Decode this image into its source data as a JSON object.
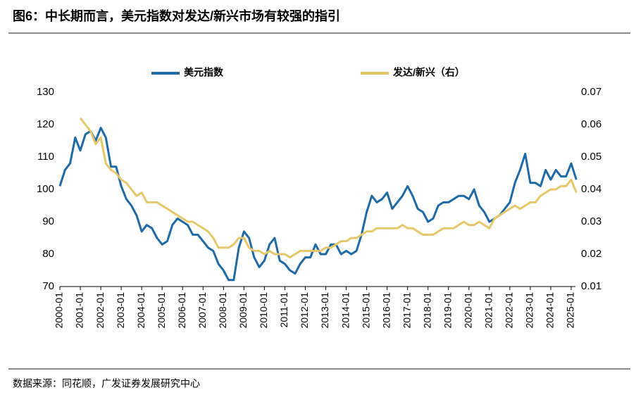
{
  "chart_data": {
    "type": "line",
    "title": "图6：中长期而言，美元指数对发达/新兴市场有较强的指引",
    "source": "数据来源：同花顺，广发证券发展研究中心",
    "x": [
      "2000-01",
      "2000-04",
      "2000-07",
      "2000-10",
      "2001-01",
      "2001-04",
      "2001-07",
      "2001-10",
      "2002-01",
      "2002-04",
      "2002-07",
      "2002-10",
      "2003-01",
      "2003-04",
      "2003-07",
      "2003-10",
      "2004-01",
      "2004-04",
      "2004-07",
      "2004-10",
      "2005-01",
      "2005-04",
      "2005-07",
      "2005-10",
      "2006-01",
      "2006-04",
      "2006-07",
      "2006-10",
      "2007-01",
      "2007-04",
      "2007-07",
      "2007-10",
      "2008-01",
      "2008-04",
      "2008-07",
      "2008-10",
      "2009-01",
      "2009-04",
      "2009-07",
      "2009-10",
      "2010-01",
      "2010-04",
      "2010-07",
      "2010-10",
      "2011-01",
      "2011-04",
      "2011-07",
      "2011-10",
      "2012-01",
      "2012-04",
      "2012-07",
      "2012-10",
      "2013-01",
      "2013-04",
      "2013-07",
      "2013-10",
      "2014-01",
      "2014-04",
      "2014-07",
      "2014-10",
      "2015-01",
      "2015-04",
      "2015-07",
      "2015-10",
      "2016-01",
      "2016-04",
      "2016-07",
      "2016-10",
      "2017-01",
      "2017-04",
      "2017-07",
      "2017-10",
      "2018-01",
      "2018-04",
      "2018-07",
      "2018-10",
      "2019-01",
      "2019-04",
      "2019-07",
      "2019-10",
      "2020-01",
      "2020-04",
      "2020-07",
      "2020-10",
      "2021-01",
      "2021-04",
      "2021-07",
      "2021-10",
      "2022-01",
      "2022-04",
      "2022-07",
      "2022-10",
      "2023-01",
      "2023-04",
      "2023-07",
      "2023-10",
      "2024-01",
      "2024-04",
      "2024-07",
      "2024-10",
      "2025-01",
      "2025-04"
    ],
    "series": [
      {
        "name": "美元指数",
        "color": "#1f6aa5",
        "axis": "y",
        "values": [
          101,
          106,
          108,
          116,
          112,
          117,
          118,
          115,
          119,
          116,
          107,
          107,
          101,
          97,
          95,
          92,
          87,
          89,
          88,
          85,
          83,
          84,
          89,
          91,
          90,
          89,
          86,
          86,
          84,
          82,
          81,
          77,
          75,
          72,
          72,
          82,
          87,
          85,
          79,
          76,
          78,
          83,
          85,
          78,
          77,
          75,
          74,
          77,
          79,
          79,
          83,
          80,
          80,
          83,
          83,
          80,
          81,
          80,
          81,
          86,
          93,
          98,
          96,
          97,
          99,
          94,
          96,
          98,
          101,
          98,
          94,
          93,
          90,
          91,
          95,
          96,
          96,
          97,
          98,
          98,
          97,
          100,
          95,
          93,
          90,
          91,
          92,
          94,
          96,
          102,
          106,
          111,
          102,
          102,
          101,
          106,
          103,
          106,
          104,
          104,
          108,
          103
        ]
      },
      {
        "name": "发达/新兴（右）",
        "color": "#e5c76b",
        "axis": "y2",
        "values": [
          null,
          null,
          null,
          null,
          0.062,
          0.06,
          0.058,
          0.054,
          0.056,
          0.048,
          0.046,
          0.045,
          0.043,
          0.042,
          0.04,
          0.038,
          0.039,
          0.036,
          0.036,
          0.036,
          0.035,
          0.034,
          0.033,
          0.032,
          0.031,
          0.03,
          0.03,
          0.029,
          0.028,
          0.027,
          0.025,
          0.022,
          0.022,
          0.022,
          0.023,
          0.025,
          0.025,
          0.022,
          0.021,
          0.021,
          0.02,
          0.021,
          0.02,
          0.02,
          0.02,
          0.019,
          0.02,
          0.021,
          0.021,
          0.021,
          0.021,
          0.021,
          0.022,
          0.022,
          0.023,
          0.024,
          0.024,
          0.025,
          0.025,
          0.026,
          0.027,
          0.027,
          0.028,
          0.028,
          0.028,
          0.028,
          0.028,
          0.029,
          0.028,
          0.028,
          0.027,
          0.026,
          0.026,
          0.026,
          0.027,
          0.028,
          0.028,
          0.028,
          0.029,
          0.03,
          0.029,
          0.029,
          0.03,
          0.029,
          0.028,
          0.031,
          0.032,
          0.033,
          0.034,
          0.035,
          0.034,
          0.035,
          0.036,
          0.036,
          0.038,
          0.039,
          0.04,
          0.04,
          0.041,
          0.041,
          0.043,
          0.039
        ]
      }
    ],
    "ylim": [
      70,
      130
    ],
    "yticks": [
      70,
      80,
      90,
      100,
      110,
      120,
      130
    ],
    "y2lim": [
      0.01,
      0.07
    ],
    "y2ticks": [
      0.01,
      0.02,
      0.03,
      0.04,
      0.05,
      0.06,
      0.07
    ],
    "grid": false
  }
}
